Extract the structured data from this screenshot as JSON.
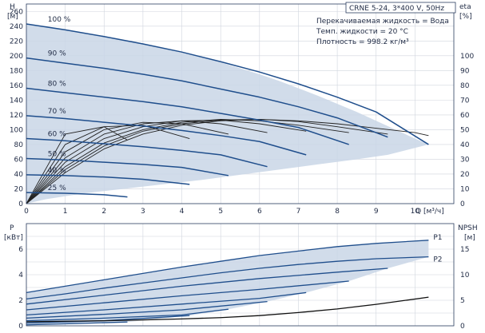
{
  "header": {
    "pump_title": "CRNE 5-24, 3*400 V, 50Hz",
    "info_lines": [
      "Перекачиваемая жидкость = Вода",
      "Темп. жидкости = 20 °C",
      "Плотность = 998.2 кг/м³"
    ]
  },
  "colors": {
    "envelope_fill": "#c9d6e6",
    "speed_curve": "#1f4e8c",
    "efficiency_curve": "#222222",
    "npsh_curve": "#111111",
    "grid": "#d0d5de",
    "text": "#1f2a44"
  },
  "chart_data": [
    {
      "id": "head-efficiency",
      "type": "line",
      "title": "CRNE 5-24, 3*400 V, 50Hz",
      "xlabel": "Q [м³/ч]",
      "ylabel": "H",
      "ylabel_unit": "[м]",
      "y2label": "eta",
      "y2label_unit": "[%]",
      "xlim": [
        0,
        11
      ],
      "ylim": [
        0,
        270
      ],
      "y2lim": [
        0,
        135
      ],
      "x_ticks": [
        0,
        1,
        2,
        3,
        4,
        5,
        6,
        7,
        8,
        9,
        10
      ],
      "y_ticks": [
        0,
        20,
        40,
        60,
        80,
        100,
        120,
        140,
        160,
        180,
        200,
        220,
        240,
        260
      ],
      "y2_ticks": [
        0,
        10,
        20,
        30,
        40,
        50,
        60,
        70,
        80,
        90,
        100
      ],
      "grid": true,
      "envelope": {
        "x": [
          0,
          0.5,
          1,
          1.5,
          2,
          2.5,
          3,
          3.5,
          4,
          4.5,
          5,
          5.5,
          6,
          6.5,
          7,
          7.5,
          8,
          8.5,
          9,
          9.5,
          10,
          10.35,
          9.3,
          8.5,
          7.5,
          6.5,
          5.5,
          4.5,
          3.5,
          2.5,
          1.5,
          0.5,
          0
        ],
        "y": [
          243,
          240,
          236,
          231,
          226,
          221,
          216,
          210,
          204,
          198,
          191,
          183,
          175,
          166,
          156,
          146,
          135,
          124,
          112,
          100,
          88,
          80,
          66,
          60,
          53,
          46,
          39,
          32,
          26,
          20,
          14,
          6,
          0
        ]
      },
      "speed_curves": [
        {
          "name": "100 %",
          "x": [
            0,
            1,
            2,
            3,
            4,
            5,
            6,
            7,
            8,
            9,
            10.35
          ],
          "y": [
            243,
            235,
            226,
            216,
            205,
            192,
            178,
            162,
            144,
            124,
            80
          ]
        },
        {
          "name": "90 %",
          "x": [
            0,
            1,
            2,
            3,
            4,
            5,
            6,
            7,
            8,
            9.3
          ],
          "y": [
            197,
            190,
            183,
            175,
            166,
            155,
            144,
            131,
            116,
            90
          ]
        },
        {
          "name": "80 %",
          "x": [
            0,
            1,
            2,
            3,
            4,
            5,
            6,
            7,
            8.3
          ],
          "y": [
            156,
            150,
            144,
            138,
            131,
            122,
            113,
            103,
            80
          ]
        },
        {
          "name": "70 %",
          "x": [
            0,
            1,
            2,
            3,
            4,
            5,
            6,
            7.2
          ],
          "y": [
            119,
            115,
            110,
            105,
            99,
            92,
            84,
            66
          ]
        },
        {
          "name": "60 %",
          "x": [
            0,
            1,
            2,
            3,
            4,
            5,
            6.2
          ],
          "y": [
            88,
            85,
            81,
            77,
            72,
            66,
            50
          ]
        },
        {
          "name": "50 %",
          "x": [
            0,
            1,
            2,
            3,
            4,
            5.2
          ],
          "y": [
            61,
            59,
            56,
            53,
            49,
            38
          ]
        },
        {
          "name": "40 %",
          "x": [
            0,
            1,
            2,
            3,
            4.2
          ],
          "y": [
            39,
            38,
            36,
            33,
            26
          ]
        },
        {
          "name": "25 %",
          "x": [
            0,
            1,
            2,
            2.6
          ],
          "y": [
            15,
            14,
            12,
            9
          ]
        }
      ],
      "efficiency_curves": [
        {
          "name": "100 %",
          "x": [
            0,
            1,
            2,
            3,
            4,
            5,
            6,
            7,
            8,
            9,
            10,
            10.35
          ],
          "y": [
            0,
            21,
            37,
            47,
            53,
            56,
            57,
            56,
            54,
            51,
            48,
            46
          ]
        },
        {
          "name": "90 %",
          "x": [
            0,
            1,
            2,
            3,
            4,
            5,
            6,
            7,
            8,
            9.3
          ],
          "y": [
            0,
            23,
            39,
            49,
            54,
            56.5,
            57,
            55.5,
            52,
            47
          ]
        },
        {
          "name": "80 %",
          "x": [
            0,
            1,
            2,
            3,
            4,
            5,
            6,
            7,
            8.3
          ],
          "y": [
            0,
            25,
            41,
            50,
            55,
            57,
            56,
            53,
            48
          ]
        },
        {
          "name": "70 %",
          "x": [
            0,
            1,
            2,
            3,
            4,
            5,
            6,
            7.2
          ],
          "y": [
            0,
            28,
            44,
            52,
            56,
            56.5,
            54,
            49
          ]
        },
        {
          "name": "60 %",
          "x": [
            0,
            1,
            2,
            3,
            4,
            5,
            6.2
          ],
          "y": [
            0,
            31,
            47,
            54,
            56,
            54,
            48
          ]
        },
        {
          "name": "50 %",
          "x": [
            0,
            1,
            2,
            3,
            4,
            5.2
          ],
          "y": [
            0,
            35,
            50,
            55,
            54,
            47
          ]
        },
        {
          "name": "40 %",
          "x": [
            0,
            1,
            2,
            3,
            4.2
          ],
          "y": [
            0,
            40,
            52,
            53,
            44
          ]
        },
        {
          "name": "25 %",
          "x": [
            0,
            1,
            2,
            2.6
          ],
          "y": [
            0,
            47,
            52,
            43
          ]
        }
      ]
    },
    {
      "id": "power-npsh",
      "type": "line",
      "xlabel": "Q [м³/ч]",
      "ylabel": "P",
      "ylabel_unit": "[кВт]",
      "y2label": "NPSH",
      "y2label_unit": "[м]",
      "xlim": [
        0,
        11
      ],
      "ylim": [
        0,
        8
      ],
      "y2lim": [
        0,
        20
      ],
      "y_ticks": [
        0,
        2,
        4,
        6
      ],
      "y2_ticks": [
        0,
        5,
        10,
        15
      ],
      "grid": true,
      "envelope": {
        "x": [
          0,
          2,
          4,
          6,
          8,
          10.35,
          10.35,
          9.3,
          8.3,
          7.2,
          6.2,
          5.2,
          4.2,
          2.6,
          0
        ],
        "y": [
          2.6,
          3.6,
          4.6,
          5.5,
          6.2,
          6.7,
          5.4,
          4.5,
          3.5,
          2.6,
          1.9,
          1.3,
          0.8,
          0.3,
          0.1
        ]
      },
      "power_curves": [
        {
          "name": "P1",
          "x": [
            0,
            1,
            2,
            3,
            4,
            5,
            6,
            7,
            8,
            9,
            10.35
          ],
          "y": [
            2.6,
            3.1,
            3.6,
            4.1,
            4.6,
            5.05,
            5.5,
            5.85,
            6.2,
            6.45,
            6.7
          ]
        },
        {
          "name": "P2",
          "x": [
            0,
            1,
            2,
            3,
            4,
            5,
            6,
            7,
            8,
            9,
            10.35
          ],
          "y": [
            2.1,
            2.5,
            2.95,
            3.35,
            3.75,
            4.15,
            4.5,
            4.8,
            5.05,
            5.25,
            5.4
          ]
        },
        {
          "name": "90 %",
          "x": [
            0,
            2,
            4,
            6,
            8,
            9.3
          ],
          "y": [
            1.7,
            2.4,
            3.1,
            3.7,
            4.2,
            4.5
          ]
        },
        {
          "name": "80 %",
          "x": [
            0,
            2,
            4,
            6,
            8.3
          ],
          "y": [
            1.25,
            1.8,
            2.35,
            2.85,
            3.5
          ]
        },
        {
          "name": "70 %",
          "x": [
            0,
            2,
            4,
            6,
            7.2
          ],
          "y": [
            0.85,
            1.25,
            1.7,
            2.15,
            2.6
          ]
        },
        {
          "name": "60 %",
          "x": [
            0,
            2,
            4,
            6.2
          ],
          "y": [
            0.6,
            0.9,
            1.25,
            1.9
          ]
        },
        {
          "name": "50 %",
          "x": [
            0,
            2,
            4,
            5.2
          ],
          "y": [
            0.4,
            0.6,
            0.85,
            1.3
          ]
        },
        {
          "name": "40 %",
          "x": [
            0,
            2,
            4.2
          ],
          "y": [
            0.22,
            0.4,
            0.8
          ]
        },
        {
          "name": "25 %",
          "x": [
            0,
            1.3,
            2.6
          ],
          "y": [
            0.08,
            0.18,
            0.3
          ]
        }
      ],
      "npsh_curve": {
        "name": "NPSH",
        "x": [
          0,
          1,
          2,
          3,
          4,
          5,
          6,
          7,
          8,
          9,
          10.35
        ],
        "y": [
          0.8,
          0.9,
          1.0,
          1.15,
          1.35,
          1.6,
          2.0,
          2.6,
          3.3,
          4.2,
          5.6
        ]
      }
    }
  ]
}
